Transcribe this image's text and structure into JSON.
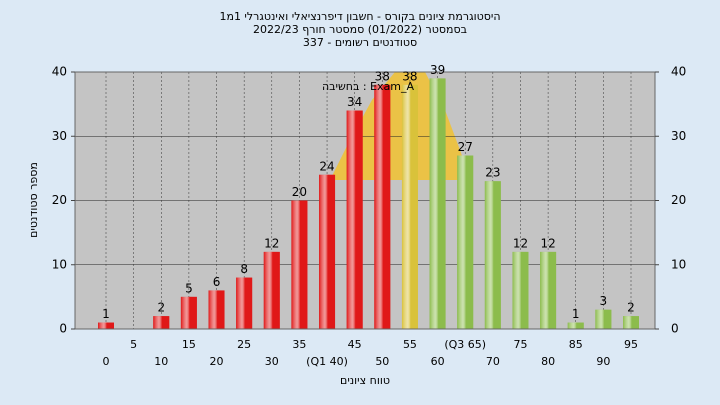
{
  "chart_data": {
    "type": "bar",
    "title": [
      "היסטוגרמת ציונים בקורס - חשבון דיפרנציאלי ואינטגרלי 1מ1",
      "בסמסטר (01/2022)  סמסטר חורף 2022/23",
      "סטודנטים רשומים - 337"
    ],
    "annotation": "בחשיבה : Exam_A",
    "y_label": "מספר סטודנטים",
    "x_label": "טווח ציונים",
    "categories": [
      "0",
      "5",
      "10",
      "15",
      "20",
      "25",
      "30",
      "35",
      "(Q1 40)",
      "45",
      "50",
      "55",
      "60",
      "(Q3 65)",
      "70",
      "75",
      "80",
      "85",
      "90",
      "95"
    ],
    "values": [
      1,
      0,
      2,
      5,
      6,
      8,
      12,
      20,
      24,
      34,
      38,
      38,
      39,
      27,
      23,
      12,
      12,
      1,
      3,
      2
    ],
    "colors": [
      "#e01818",
      "#e01818",
      "#e01818",
      "#e01818",
      "#e01818",
      "#e01818",
      "#e01818",
      "#e01818",
      "#e01818",
      "#e01818",
      "#e01818",
      "#d9c23a",
      "#8cbc4c",
      "#8cbc4c",
      "#8cbc4c",
      "#8cbc4c",
      "#8cbc4c",
      "#8cbc4c",
      "#8cbc4c",
      "#8cbc4c"
    ],
    "ylim": [
      0,
      40
    ],
    "yticks": [
      0,
      10,
      20,
      30,
      40
    ],
    "grid": true
  }
}
